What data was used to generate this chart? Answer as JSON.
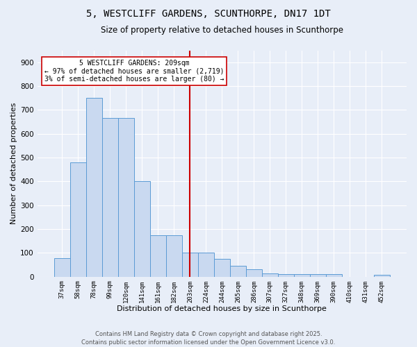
{
  "title": "5, WESTCLIFF GARDENS, SCUNTHORPE, DN17 1DT",
  "subtitle": "Size of property relative to detached houses in Scunthorpe",
  "xlabel": "Distribution of detached houses by size in Scunthorpe",
  "ylabel": "Number of detached properties",
  "categories": [
    "37sqm",
    "58sqm",
    "78sqm",
    "99sqm",
    "120sqm",
    "141sqm",
    "161sqm",
    "182sqm",
    "203sqm",
    "224sqm",
    "244sqm",
    "265sqm",
    "286sqm",
    "307sqm",
    "327sqm",
    "348sqm",
    "369sqm",
    "390sqm",
    "410sqm",
    "431sqm",
    "452sqm"
  ],
  "values": [
    78,
    480,
    750,
    665,
    665,
    400,
    175,
    175,
    100,
    100,
    75,
    45,
    32,
    14,
    12,
    10,
    10,
    10,
    0,
    0,
    8
  ],
  "bar_color": "#c9d9f0",
  "bar_edge_color": "#5b9bd5",
  "red_line_index": 8,
  "annotation_line1": "5 WESTCLIFF GARDENS: 209sqm",
  "annotation_line2": "← 97% of detached houses are smaller (2,719)",
  "annotation_line3": "3% of semi-detached houses are larger (80) →",
  "annotation_box_color": "#ffffff",
  "annotation_box_edge": "#cc0000",
  "ylim": [
    0,
    950
  ],
  "yticks": [
    0,
    100,
    200,
    300,
    400,
    500,
    600,
    700,
    800,
    900
  ],
  "bg_color": "#e8eef8",
  "grid_color": "#ffffff",
  "footer_line1": "Contains HM Land Registry data © Crown copyright and database right 2025.",
  "footer_line2": "Contains public sector information licensed under the Open Government Licence v3.0.",
  "title_fontsize": 10,
  "subtitle_fontsize": 8.5,
  "xlabel_fontsize": 8,
  "ylabel_fontsize": 8
}
